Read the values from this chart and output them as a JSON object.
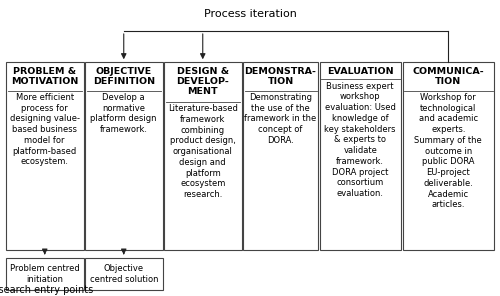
{
  "title": "Process iteration",
  "footer": "Research entry points",
  "boxes": [
    {
      "title": "PROBLEM &\nMOTIVATION",
      "body": "More efficient\nprocess for\ndesigning value-\nbased business\nmodel for\nplatform-based\necosystem.",
      "xf": 0.012,
      "yf": 0.155,
      "wf": 0.155,
      "hf": 0.635
    },
    {
      "title": "OBJECTIVE\nDEFINITION",
      "body": "Develop a\nnormative\nplatform design\nframework.",
      "xf": 0.17,
      "yf": 0.155,
      "wf": 0.155,
      "hf": 0.635
    },
    {
      "title": "DESIGN &\nDEVELOP-\nMENT",
      "body": "Literature-based\nframework\ncombining\nproduct design,\norganisational\ndesign and\nplatform\necosystem\nresearch.",
      "xf": 0.328,
      "yf": 0.155,
      "wf": 0.155,
      "hf": 0.635
    },
    {
      "title": "DEMONSTRA-\nTION",
      "body": "Demonstrating\nthe use of the\nframework in the\nconcept of\nDORA.",
      "xf": 0.486,
      "yf": 0.155,
      "wf": 0.15,
      "hf": 0.635
    },
    {
      "title": "EVALUATION",
      "body": "Business expert\nworkshop\nevaluation: Used\nknowledge of\nkey stakeholders\n& experts to\nvalidate\nframework.\nDORA project\nconsortium\nevaluation.",
      "xf": 0.639,
      "yf": 0.155,
      "wf": 0.163,
      "hf": 0.635
    },
    {
      "title": "COMMUNICA-\nTION",
      "body": "Workshop for\ntechnological\nand academic\nexperts.\nSummary of the\noutcome in\npublic DORA\nEU-project\ndeliverable.\nAcademic\narticles.",
      "xf": 0.805,
      "yf": 0.155,
      "wf": 0.183,
      "hf": 0.635
    }
  ],
  "bottom_boxes": [
    {
      "label": "Problem centred\ninitiation",
      "xf": 0.012,
      "yf": 0.02,
      "wf": 0.155,
      "hf": 0.11
    },
    {
      "label": "Objective\ncentred solution",
      "xf": 0.17,
      "yf": 0.02,
      "wf": 0.155,
      "hf": 0.11
    }
  ],
  "bg_color": "#ffffff",
  "box_edge_color": "#444444",
  "text_color": "#000000",
  "arrow_color": "#222222",
  "title_fontsize": 6.8,
  "body_fontsize": 6.0,
  "process_iter_fontsize": 8.0,
  "footer_fontsize": 7.0
}
